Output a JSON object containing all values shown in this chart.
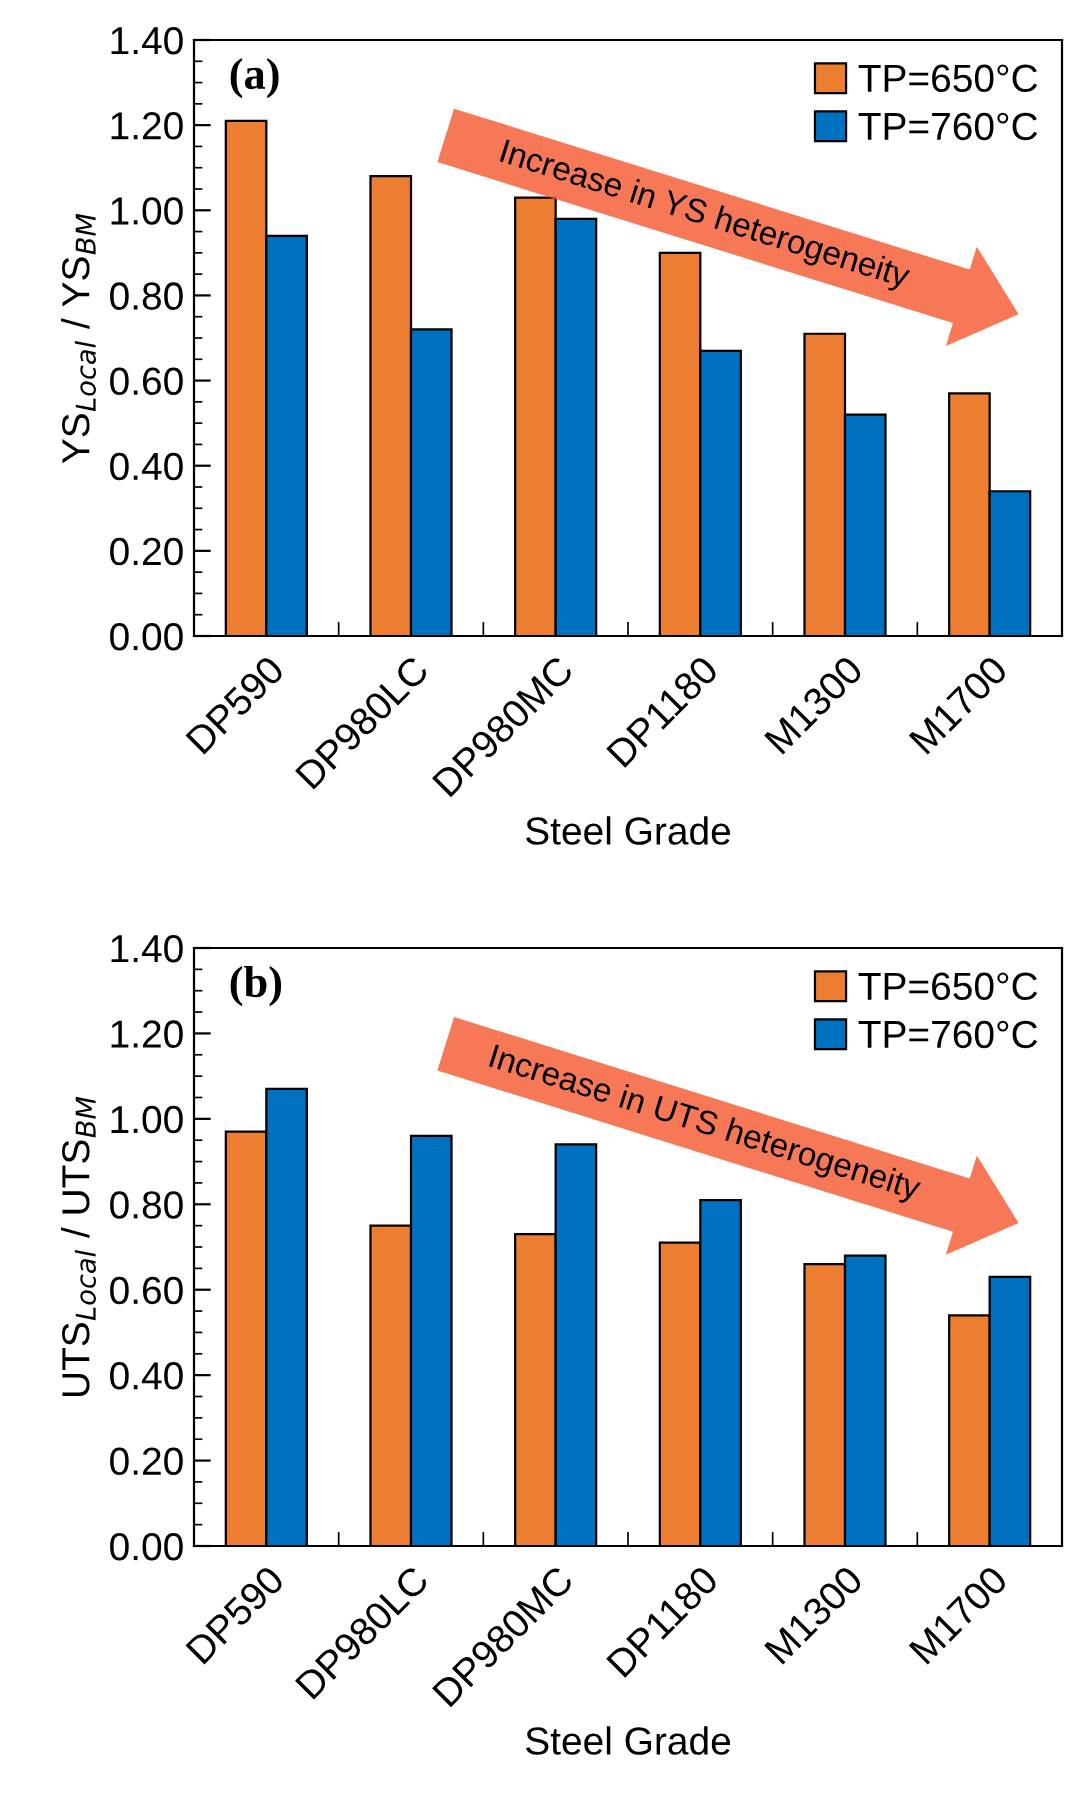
{
  "chart_data": [
    {
      "type": "bar",
      "xlabel": "Steel Grade",
      "ylabel": "YS$_{Local}$ / YS$_{BM}$",
      "categories": [
        "DP590",
        "DP980LC",
        "DP980MC",
        "DP1180",
        "M1300",
        "M1700"
      ],
      "series": [
        {
          "name": "TP=650°C",
          "color": "#ed7d31",
          "values": [
            1.21,
            1.08,
            1.03,
            0.9,
            0.71,
            0.57
          ]
        },
        {
          "name": "TP=760°C",
          "color": "#0070c0",
          "values": [
            0.94,
            0.72,
            0.98,
            0.67,
            0.52,
            0.34
          ]
        }
      ],
      "ylim": [
        0,
        1.4
      ],
      "yticks": [
        {
          "value": 0,
          "label": "0.00"
        },
        {
          "value": 0.2,
          "label": "0.20"
        },
        {
          "value": 0.4,
          "label": "0.40"
        },
        {
          "value": 0.6,
          "label": "0.60"
        },
        {
          "value": 0.8,
          "label": "0.80"
        },
        {
          "value": 1.0,
          "label": "1.00"
        },
        {
          "value": 1.2,
          "label": "1.20"
        },
        {
          "value": 1.4,
          "label": "1.40"
        }
      ],
      "legend": "top right",
      "grid": false,
      "annotations": [
        "(a)",
        "Increase in YS heterogeneity"
      ]
    },
    {
      "type": "bar",
      "xlabel": "Steel Grade",
      "ylabel": "UTS$_{Local}$ / UTS$_{BM}$",
      "categories": [
        "DP590",
        "DP980LC",
        "DP980MC",
        "DP1180",
        "M1300",
        "M1700"
      ],
      "series": [
        {
          "name": "TP=650°C",
          "color": "#ed7d31",
          "values": [
            0.97,
            0.75,
            0.73,
            0.71,
            0.66,
            0.54
          ]
        },
        {
          "name": "TP=760°C",
          "color": "#0070c0",
          "values": [
            1.07,
            0.96,
            0.94,
            0.81,
            0.68,
            0.63
          ]
        }
      ],
      "ylim": [
        0,
        1.4
      ],
      "yticks": [
        {
          "value": 0,
          "label": "0.00"
        },
        {
          "value": 0.2,
          "label": "0.20"
        },
        {
          "value": 0.4,
          "label": "0.40"
        },
        {
          "value": 0.6,
          "label": "0.60"
        },
        {
          "value": 0.8,
          "label": "0.80"
        },
        {
          "value": 1.0,
          "label": "1.00"
        },
        {
          "value": 1.2,
          "label": "1.20"
        },
        {
          "value": 1.4,
          "label": "1.40"
        }
      ],
      "legend": "top right",
      "grid": false,
      "annotations": [
        "(b)",
        "Increase in UTS heterogeneity"
      ]
    }
  ]
}
